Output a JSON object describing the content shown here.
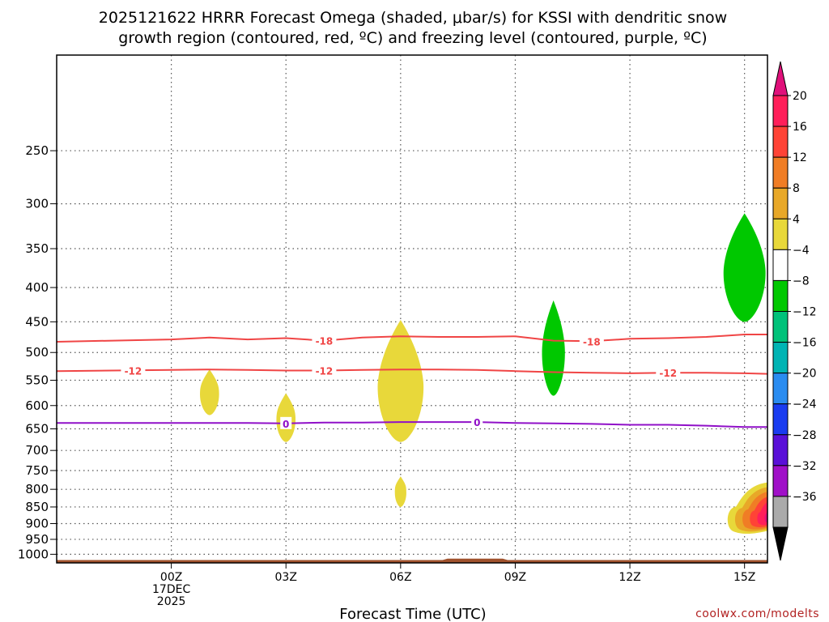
{
  "title_line1": "2025121622 HRRR Forecast Omega (shaded, μbar/s) for KSSI with dendritic snow",
  "title_line2": "growth region (contoured, red, ºC) and freezing level (contoured, purple, ºC)",
  "credit": "coolwx.com/modelts",
  "chart_data": {
    "type": "time-height cross section",
    "xlabel": "Forecast Time (UTC)",
    "x_range_hours": [
      -3,
      15.6
    ],
    "x_ticks": [
      {
        "hour": 0,
        "lines": [
          "00Z",
          "17DEC",
          "2025"
        ]
      },
      {
        "hour": 3,
        "lines": [
          "03Z"
        ]
      },
      {
        "hour": 6,
        "lines": [
          "06Z"
        ]
      },
      {
        "hour": 9,
        "lines": [
          "09Z"
        ]
      },
      {
        "hour": 12,
        "lines": [
          "12Z"
        ]
      },
      {
        "hour": 15,
        "lines": [
          "15Z"
        ]
      }
    ],
    "y_axis": {
      "scale": "log",
      "direction": "inverted",
      "range_mb": [
        1030,
        180
      ]
    },
    "y_ticks_mb": [
      250,
      300,
      350,
      400,
      450,
      500,
      550,
      600,
      650,
      700,
      750,
      800,
      850,
      900,
      950,
      1000
    ],
    "grid": "dotted",
    "colorbar": {
      "unit": "μbar/s",
      "ticks": [
        20,
        16,
        12,
        8,
        4,
        -4,
        -8,
        -12,
        -16,
        -20,
        -24,
        -28,
        -32,
        -36
      ],
      "bins": [
        {
          "from": 20,
          "to": 24,
          "color": "#ff1f5a"
        },
        {
          "from": 16,
          "to": 20,
          "color": "#ff4336"
        },
        {
          "from": 12,
          "to": 16,
          "color": "#f07d25"
        },
        {
          "from": 8,
          "to": 12,
          "color": "#e8a828"
        },
        {
          "from": 4,
          "to": 8,
          "color": "#e8d83a"
        },
        {
          "from": -4,
          "to": 4,
          "color": "#ffffff"
        },
        {
          "from": -8,
          "to": -4,
          "color": "#00c800"
        },
        {
          "from": -12,
          "to": -8,
          "color": "#00c27a"
        },
        {
          "from": -16,
          "to": -12,
          "color": "#00b4b4"
        },
        {
          "from": -20,
          "to": -16,
          "color": "#2a8cf0"
        },
        {
          "from": -24,
          "to": -20,
          "color": "#1a3cf0"
        },
        {
          "from": -28,
          "to": -24,
          "color": "#5a10d8"
        },
        {
          "from": -32,
          "to": -28,
          "color": "#a010c8"
        },
        {
          "from": -36,
          "to": -32,
          "color": "#aaaaaa"
        }
      ],
      "top_extension_color": "#e0107a",
      "bottom_extension_color": "#000000"
    },
    "shaded_regions": [
      {
        "center_hour": 1.0,
        "top_mb": 530,
        "bottom_mb": 620,
        "halfwidth_hours": 0.25,
        "color": "#e8d83a",
        "value_range": [
          4,
          8
        ]
      },
      {
        "center_hour": 3.0,
        "top_mb": 575,
        "bottom_mb": 680,
        "halfwidth_hours": 0.25,
        "color": "#e8d83a",
        "value_range": [
          4,
          8
        ]
      },
      {
        "center_hour": 6.0,
        "top_mb": 447,
        "bottom_mb": 680,
        "halfwidth_hours": 0.6,
        "color": "#e8d83a",
        "value_range": [
          4,
          8
        ]
      },
      {
        "center_hour": 6.0,
        "top_mb": 765,
        "bottom_mb": 850,
        "halfwidth_hours": 0.15,
        "color": "#e8d83a",
        "value_range": [
          4,
          8
        ]
      },
      {
        "center_hour": 10.0,
        "top_mb": 418,
        "bottom_mb": 580,
        "halfwidth_hours": 0.3,
        "color": "#00c800",
        "value_range": [
          -8,
          -4
        ]
      },
      {
        "center_hour": 15.0,
        "top_mb": 310,
        "bottom_mb": 450,
        "halfwidth_hours": 0.55,
        "color": "#00c800",
        "value_range": [
          -8,
          -4
        ]
      }
    ],
    "omega_max_corner": {
      "hour_start": 14.5,
      "hour_end": 15.6,
      "top_mb": 780,
      "bottom_mb": 960,
      "max_value": 24
    },
    "contours": [
      {
        "name": "-18",
        "color": "#f04545",
        "points": [
          [
            -3,
            482
          ],
          [
            0,
            478
          ],
          [
            1,
            475
          ],
          [
            2,
            478
          ],
          [
            3,
            476
          ],
          [
            4,
            480
          ],
          [
            5,
            475
          ],
          [
            6,
            473
          ],
          [
            7,
            474
          ],
          [
            8,
            474
          ],
          [
            9,
            473
          ],
          [
            10,
            480
          ],
          [
            11,
            481
          ],
          [
            12,
            477
          ],
          [
            13,
            476
          ],
          [
            14,
            474
          ],
          [
            15,
            470
          ],
          [
            15.6,
            470
          ]
        ]
      },
      {
        "name": "-12",
        "color": "#f04545",
        "points": [
          [
            -3,
            533
          ],
          [
            0,
            531
          ],
          [
            1,
            530
          ],
          [
            2,
            531
          ],
          [
            3,
            532
          ],
          [
            4,
            532
          ],
          [
            5,
            531
          ],
          [
            6,
            530
          ],
          [
            7,
            530
          ],
          [
            8,
            531
          ],
          [
            9,
            533
          ],
          [
            10,
            535
          ],
          [
            11,
            536
          ],
          [
            12,
            537
          ],
          [
            13,
            536
          ],
          [
            14,
            536
          ],
          [
            15,
            537
          ],
          [
            15.6,
            538
          ]
        ]
      },
      {
        "name": "0",
        "color": "#9010c8",
        "points": [
          [
            -3,
            637
          ],
          [
            0,
            637
          ],
          [
            1,
            637
          ],
          [
            2,
            637
          ],
          [
            3,
            638
          ],
          [
            4,
            636
          ],
          [
            5,
            636
          ],
          [
            6,
            635
          ],
          [
            7,
            635
          ],
          [
            8,
            635
          ],
          [
            9,
            637
          ],
          [
            10,
            638
          ],
          [
            11,
            639
          ],
          [
            12,
            641
          ],
          [
            13,
            641
          ],
          [
            14,
            643
          ],
          [
            15,
            646
          ],
          [
            15.6,
            646
          ]
        ]
      }
    ],
    "contour_labels": [
      {
        "text": "-18",
        "hour": 4.0,
        "mb": 480,
        "color": "#f04545"
      },
      {
        "text": "-18",
        "hour": 11.0,
        "mb": 481,
        "color": "#f04545"
      },
      {
        "text": "-12",
        "hour": -1.0,
        "mb": 532,
        "color": "#f04545"
      },
      {
        "text": "-12",
        "hour": 4.0,
        "mb": 532,
        "color": "#f04545"
      },
      {
        "text": "-12",
        "hour": 13.0,
        "mb": 536,
        "color": "#f04545"
      },
      {
        "text": "0",
        "hour": 3.0,
        "mb": 638,
        "color": "#9010c8"
      },
      {
        "text": "0",
        "hour": 8.0,
        "mb": 635,
        "color": "#9010c8"
      }
    ],
    "ground": {
      "color": "#a0522d",
      "surface_mb": 1020,
      "bump": {
        "hour_start": 7.1,
        "hour_end": 8.8,
        "surface_mb": 1015
      }
    }
  }
}
